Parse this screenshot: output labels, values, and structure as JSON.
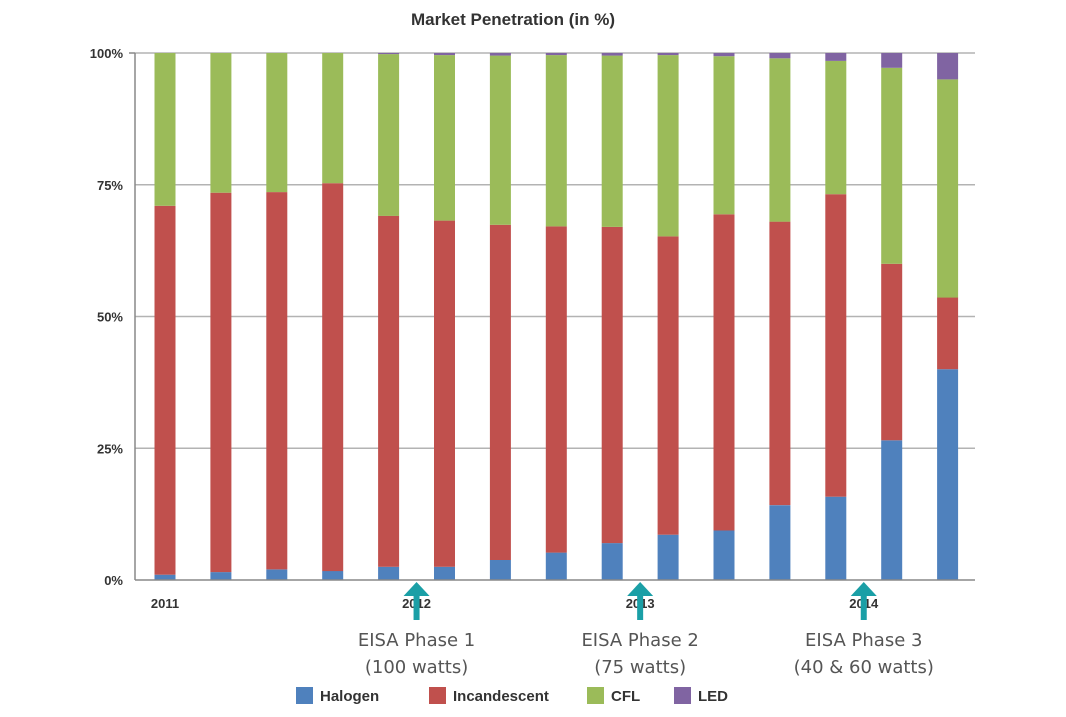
{
  "chart_data": {
    "type": "bar",
    "stacked": true,
    "title": "Market Penetration (in %)",
    "xlabel": "",
    "ylabel": "",
    "ylim": [
      0,
      100
    ],
    "y_ticks": [
      "0%",
      "25%",
      "50%",
      "75%",
      "100%"
    ],
    "x_tick_labels": [
      {
        "label": "2011",
        "bar_index": 0
      },
      {
        "label": "2012",
        "bar_index": 4.5
      },
      {
        "label": "2013",
        "bar_index": 8.5
      },
      {
        "label": "2014",
        "bar_index": 12.5
      }
    ],
    "bar_count": 15,
    "series": [
      {
        "name": "Halogen",
        "color": "#4f81bd",
        "values": [
          1,
          1.5,
          2,
          1.7,
          2.5,
          2.5,
          3.8,
          5.2,
          7,
          8.6,
          9.4,
          14.2,
          15.8,
          26.5,
          40
        ]
      },
      {
        "name": "Incandescent",
        "color": "#c0504d",
        "values": [
          70,
          72,
          71.6,
          73.6,
          66.6,
          65.7,
          63.6,
          61.9,
          60,
          56.6,
          60,
          53.8,
          57.4,
          33.5,
          13.6
        ]
      },
      {
        "name": "CFL",
        "color": "#9bbb59",
        "values": [
          29,
          26.5,
          26.4,
          24.7,
          30.7,
          31.4,
          32.1,
          32.5,
          32.5,
          34.4,
          30,
          31,
          25.3,
          37.2,
          41.4
        ]
      },
      {
        "name": "LED",
        "color": "#8064a2",
        "values": [
          0,
          0,
          0,
          0,
          0.2,
          0.4,
          0.5,
          0.4,
          0.5,
          0.4,
          0.6,
          1,
          1.5,
          2.8,
          5
        ]
      }
    ],
    "grid": true,
    "legend": "bottom",
    "annotations": [
      {
        "line1": "EISA Phase 1",
        "line2": "(100 watts)",
        "bar_index": 4.5,
        "arrow_color": "#1a9fa6"
      },
      {
        "line1": "EISA Phase 2",
        "line2": "(75 watts)",
        "bar_index": 8.5,
        "arrow_color": "#1a9fa6"
      },
      {
        "line1": "EISA Phase 3",
        "line2": "(40 & 60 watts)",
        "bar_index": 12.5,
        "arrow_color": "#1a9fa6"
      }
    ]
  }
}
